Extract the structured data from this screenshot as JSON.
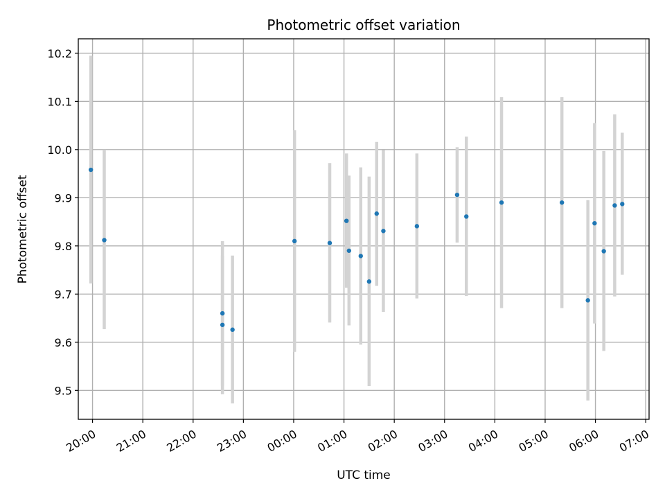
{
  "chart_data": {
    "type": "scatter",
    "title": "Photometric offset variation",
    "xlabel": "UTC time",
    "ylabel": "Photometric offset",
    "x_format": "HH:MM",
    "xlim": [
      "19:43",
      "07:04"
    ],
    "ylim": [
      9.44,
      10.23
    ],
    "x_ticks": [
      "20:00",
      "21:00",
      "22:00",
      "23:00",
      "00:00",
      "01:00",
      "02:00",
      "03:00",
      "04:00",
      "05:00",
      "06:00",
      "07:00"
    ],
    "y_ticks": [
      9.5,
      9.6,
      9.7,
      9.8,
      9.9,
      10.0,
      10.1,
      10.2
    ],
    "y_tick_labels": [
      "9.5",
      "9.6",
      "9.7",
      "9.8",
      "9.9",
      "10.0",
      "10.1",
      "10.2"
    ],
    "grid": true,
    "colors": {
      "point": "#1f77b4",
      "error_bar": "#d3d3d3",
      "grid": "#b0b0b0"
    },
    "points": [
      {
        "x": "19:58",
        "y": 9.958,
        "low": 9.722,
        "high": 10.195
      },
      {
        "x": "20:14",
        "y": 9.812,
        "low": 9.627,
        "high": 10.0
      },
      {
        "x": "22:35",
        "y": 9.66,
        "low": 9.51,
        "high": 9.81
      },
      {
        "x": "22:35",
        "y": 9.636,
        "low": 9.492,
        "high": 9.78
      },
      {
        "x": "22:47",
        "y": 9.626,
        "low": 9.473,
        "high": 9.78
      },
      {
        "x": "00:01",
        "y": 9.81,
        "low": 9.58,
        "high": 10.04
      },
      {
        "x": "00:43",
        "y": 9.806,
        "low": 9.641,
        "high": 9.972
      },
      {
        "x": "01:03",
        "y": 9.852,
        "low": 9.713,
        "high": 9.992
      },
      {
        "x": "01:06",
        "y": 9.79,
        "low": 9.635,
        "high": 9.946
      },
      {
        "x": "01:20",
        "y": 9.779,
        "low": 9.595,
        "high": 9.963
      },
      {
        "x": "01:30",
        "y": 9.726,
        "low": 9.509,
        "high": 9.944
      },
      {
        "x": "01:39",
        "y": 9.867,
        "low": 9.717,
        "high": 10.016
      },
      {
        "x": "01:47",
        "y": 9.831,
        "low": 9.663,
        "high": 9.999
      },
      {
        "x": "02:27",
        "y": 9.841,
        "low": 9.691,
        "high": 9.992
      },
      {
        "x": "03:15",
        "y": 9.906,
        "low": 9.807,
        "high": 10.005
      },
      {
        "x": "03:26",
        "y": 9.861,
        "low": 9.696,
        "high": 10.027
      },
      {
        "x": "04:08",
        "y": 9.89,
        "low": 9.671,
        "high": 10.109
      },
      {
        "x": "05:20",
        "y": 9.89,
        "low": 9.671,
        "high": 10.109
      },
      {
        "x": "05:51",
        "y": 9.687,
        "low": 9.479,
        "high": 9.895
      },
      {
        "x": "05:59",
        "y": 9.847,
        "low": 9.639,
        "high": 10.055
      },
      {
        "x": "06:10",
        "y": 9.789,
        "low": 9.582,
        "high": 9.997
      },
      {
        "x": "06:23",
        "y": 9.884,
        "low": 9.695,
        "high": 10.073
      },
      {
        "x": "06:32",
        "y": 9.887,
        "low": 9.74,
        "high": 10.035
      }
    ]
  }
}
